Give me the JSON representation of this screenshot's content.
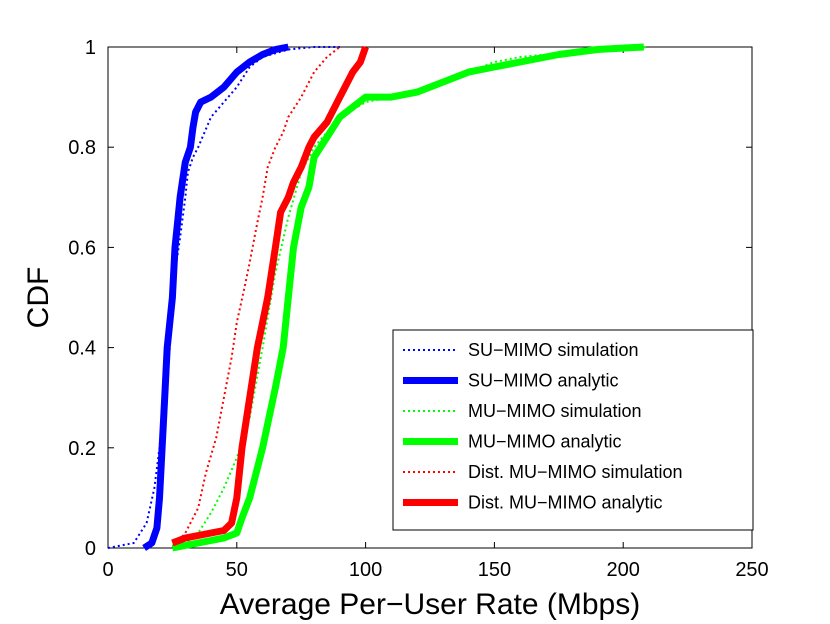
{
  "chart_data": {
    "type": "line",
    "title": "",
    "xlabel": "Average Per−User Rate (Mbps)",
    "ylabel": "CDF",
    "xlim": [
      0,
      250
    ],
    "ylim": [
      0,
      1
    ],
    "xticks": [
      0,
      50,
      100,
      150,
      200,
      250
    ],
    "yticks": [
      0,
      0.2,
      0.4,
      0.6,
      0.8,
      1
    ],
    "xtick_labels": [
      "0",
      "50",
      "100",
      "150",
      "200",
      "250"
    ],
    "ytick_labels": [
      "0",
      "0.2",
      "0.4",
      "0.6",
      "0.8",
      "1"
    ],
    "grid": false,
    "legend_position": "bottom-right",
    "series": [
      {
        "name": "SU−MIMO simulation",
        "color": "#0000ff",
        "style": "dotted",
        "x": [
          0,
          10,
          15,
          18,
          20,
          22,
          24,
          25,
          26,
          28,
          30,
          31,
          33,
          35,
          40,
          45,
          50,
          55,
          60,
          70,
          80,
          90
        ],
        "y": [
          0,
          0.01,
          0.05,
          0.12,
          0.2,
          0.3,
          0.4,
          0.5,
          0.55,
          0.62,
          0.7,
          0.75,
          0.78,
          0.8,
          0.86,
          0.89,
          0.92,
          0.96,
          0.98,
          0.995,
          1,
          1
        ]
      },
      {
        "name": "SU−MIMO analytic",
        "color": "#0000ff",
        "style": "solid",
        "x": [
          14,
          17,
          19,
          20,
          21,
          22,
          23,
          25,
          26,
          27,
          28,
          30,
          32,
          33,
          34,
          36,
          40,
          45,
          50,
          55,
          60,
          65,
          70
        ],
        "y": [
          0,
          0.01,
          0.04,
          0.1,
          0.2,
          0.3,
          0.4,
          0.5,
          0.6,
          0.65,
          0.7,
          0.77,
          0.8,
          0.84,
          0.87,
          0.89,
          0.9,
          0.92,
          0.95,
          0.97,
          0.985,
          0.995,
          1
        ]
      },
      {
        "name": "MU−MIMO simulation",
        "color": "#00ff00",
        "style": "dotted",
        "x": [
          28,
          35,
          40,
          45,
          50,
          55,
          60,
          65,
          70,
          75,
          80,
          90,
          100,
          110,
          120,
          130,
          140,
          150,
          160,
          170,
          180,
          190,
          200,
          210
        ],
        "y": [
          0,
          0.03,
          0.07,
          0.12,
          0.18,
          0.26,
          0.4,
          0.55,
          0.66,
          0.75,
          0.8,
          0.86,
          0.89,
          0.9,
          0.91,
          0.93,
          0.95,
          0.97,
          0.98,
          0.985,
          0.99,
          0.995,
          0.998,
          1
        ]
      },
      {
        "name": "MU−MIMO analytic",
        "color": "#00ff00",
        "style": "solid",
        "x": [
          25,
          35,
          45,
          50,
          52,
          55,
          60,
          65,
          68,
          70,
          72,
          75,
          78,
          80,
          85,
          90,
          95,
          100,
          110,
          120,
          130,
          140,
          150,
          160,
          175,
          190,
          208
        ],
        "y": [
          0,
          0.01,
          0.02,
          0.03,
          0.06,
          0.1,
          0.2,
          0.32,
          0.4,
          0.5,
          0.6,
          0.68,
          0.72,
          0.78,
          0.82,
          0.86,
          0.88,
          0.9,
          0.9,
          0.91,
          0.93,
          0.95,
          0.96,
          0.97,
          0.985,
          0.995,
          1
        ]
      },
      {
        "name": "Dist. MU−MIMO simulation",
        "color": "#ff0000",
        "style": "dotted",
        "x": [
          25,
          30,
          35,
          38,
          42,
          45,
          48,
          50,
          53,
          55,
          58,
          60,
          62,
          65,
          68,
          70,
          75,
          80,
          85,
          90
        ],
        "y": [
          0,
          0.03,
          0.08,
          0.15,
          0.22,
          0.3,
          0.38,
          0.45,
          0.52,
          0.57,
          0.65,
          0.7,
          0.76,
          0.8,
          0.83,
          0.86,
          0.9,
          0.95,
          0.98,
          1
        ]
      },
      {
        "name": "Dist. MU−MIMO analytic",
        "color": "#ff0000",
        "style": "solid",
        "x": [
          25,
          30,
          35,
          40,
          45,
          48,
          50,
          52,
          55,
          58,
          60,
          62,
          65,
          67,
          70,
          72,
          75,
          78,
          80,
          85,
          90,
          95,
          98,
          100
        ],
        "y": [
          0.01,
          0.02,
          0.025,
          0.03,
          0.035,
          0.05,
          0.1,
          0.2,
          0.3,
          0.4,
          0.45,
          0.5,
          0.6,
          0.67,
          0.7,
          0.73,
          0.76,
          0.8,
          0.82,
          0.85,
          0.9,
          0.95,
          0.97,
          1
        ]
      }
    ]
  }
}
